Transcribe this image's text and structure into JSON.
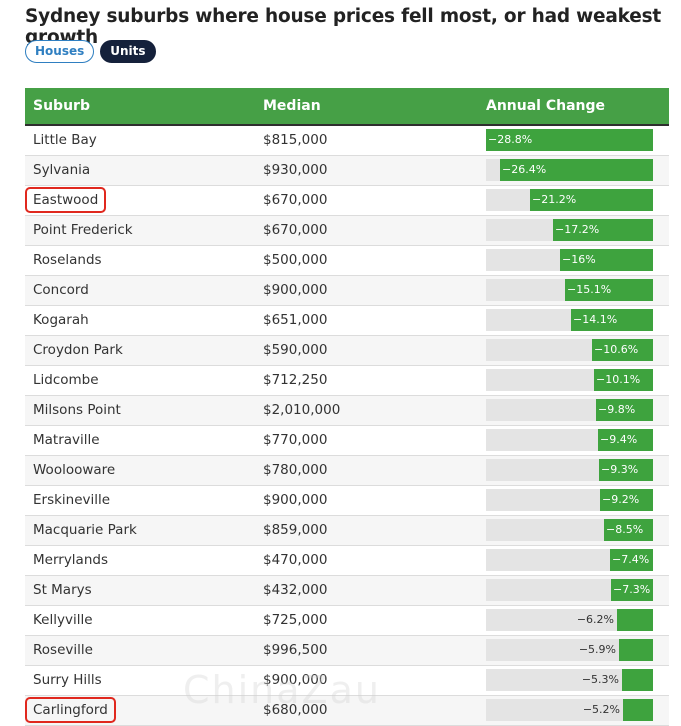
{
  "title": "Sydney suburbs where house prices fell most, or had weakest growth",
  "tabs": [
    {
      "label": "Houses",
      "active": false
    },
    {
      "label": "Units",
      "active": true
    }
  ],
  "columns": {
    "suburb": "Suburb",
    "median": "Median",
    "change": "Annual Change"
  },
  "colors": {
    "header": "#46a046",
    "bar": "#3ea33e",
    "track": "#e4e4e4",
    "highlight": "#e0281e",
    "active_tab": "#15213b",
    "tab_border": "#2f7fc1"
  },
  "watermark": "ChinaZau",
  "chart_data": {
    "type": "bar",
    "orientation": "horizontal",
    "title": "Sydney suburbs where house prices fell most, or had weakest growth",
    "xlim": [
      -28.8,
      0
    ],
    "categories": [
      "Little Bay",
      "Sylvania",
      "Eastwood",
      "Point Frederick",
      "Roselands",
      "Concord",
      "Kogarah",
      "Croydon Park",
      "Lidcombe",
      "Milsons Point",
      "Matraville",
      "Woolooware",
      "Erskineville",
      "Macquarie Park",
      "Merrylands",
      "St Marys",
      "Kellyville",
      "Roseville",
      "Surry Hills",
      "Carlingford"
    ],
    "medians": [
      "$815,000",
      "$930,000",
      "$670,000",
      "$670,000",
      "$500,000",
      "$900,000",
      "$651,000",
      "$590,000",
      "$712,250",
      "$2,010,000",
      "$770,000",
      "$780,000",
      "$900,000",
      "$859,000",
      "$470,000",
      "$432,000",
      "$725,000",
      "$996,500",
      "$900,000",
      "$680,000"
    ],
    "values": [
      -28.8,
      -26.4,
      -21.2,
      -17.2,
      -16,
      -15.1,
      -14.1,
      -10.6,
      -10.1,
      -9.8,
      -9.4,
      -9.3,
      -9.2,
      -8.5,
      -7.4,
      -7.3,
      -6.2,
      -5.9,
      -5.3,
      -5.2
    ],
    "labels": [
      "−28.8%",
      "−26.4%",
      "−21.2%",
      "−17.2%",
      "−16%",
      "−15.1%",
      "−14.1%",
      "−10.6%",
      "−10.1%",
      "−9.8%",
      "−9.4%",
      "−9.3%",
      "−9.2%",
      "−8.5%",
      "−7.4%",
      "−7.3%",
      "−6.2%",
      "−5.9%",
      "−5.3%",
      "−5.2%"
    ],
    "highlighted": [
      "Eastwood",
      "Carlingford"
    ]
  }
}
